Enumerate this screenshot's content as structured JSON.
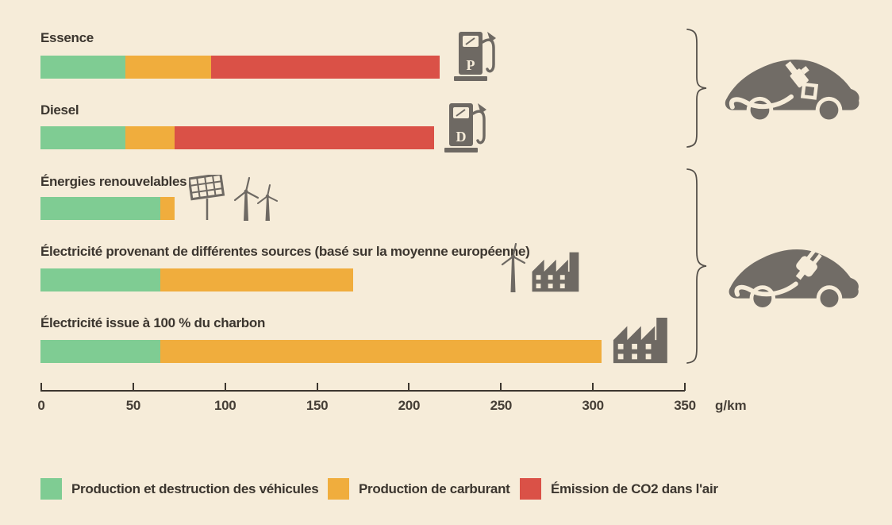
{
  "chart_data": {
    "type": "bar",
    "orientation": "horizontal",
    "stacked": true,
    "unit": "g/km",
    "axis": {
      "min": 0,
      "max": 350,
      "ticks": [
        0,
        50,
        100,
        150,
        200,
        250,
        300,
        350
      ],
      "unit_label": "g/km"
    },
    "series": [
      {
        "name": "Production et destruction des véhicules",
        "color": "#7fcc93"
      },
      {
        "name": "Production de carburant",
        "color": "#f0ad3d"
      },
      {
        "name": "Émission de CO2 dans l'air",
        "color": "#da5147"
      }
    ],
    "rows": [
      {
        "label": "Essence",
        "values": [
          46,
          47,
          124
        ],
        "total": 217,
        "icon": "petrol-pump"
      },
      {
        "label": "Diesel",
        "values": [
          46,
          27,
          141
        ],
        "total": 214,
        "icon": "diesel-pump"
      },
      {
        "label": "Énergies renouvelables",
        "values": [
          65,
          8,
          0
        ],
        "total": 73,
        "icon": "solar-panel-and-wind-turbines"
      },
      {
        "label": "Électricité provenant de différentes sources (basé sur la moyenne européenne)",
        "values": [
          65,
          105,
          0
        ],
        "total": 170,
        "icon": "wind-turbine-and-factory"
      },
      {
        "label": "Électricité issue à 100 % du charbon",
        "values": [
          65,
          240,
          0
        ],
        "total": 305,
        "icon": "factory"
      }
    ],
    "groups": [
      {
        "rows": [
          "Essence",
          "Diesel"
        ],
        "icon": "car-with-fuel-nozzle"
      },
      {
        "rows": [
          "Énergies renouvelables",
          "Électricité provenant de différentes sources (basé sur la moyenne européenne)",
          "Électricité issue à 100 % du charbon"
        ],
        "icon": "car-with-electric-plug"
      }
    ]
  },
  "legend": {
    "items": [
      {
        "swatch_color": "#7fcc93",
        "label": "Production et destruction des véhicules"
      },
      {
        "swatch_color": "#f0ad3d",
        "label": "Production de carburant"
      },
      {
        "swatch_color": "#da5147",
        "label": "Émission de CO2 dans l'air"
      }
    ]
  },
  "icons": {
    "petrol_pump_letter": "P",
    "diesel_pump_letter": "D"
  },
  "colors": {
    "background": "#f6ecd9",
    "icon_gray": "#6e6963",
    "text": "#3c362f"
  }
}
